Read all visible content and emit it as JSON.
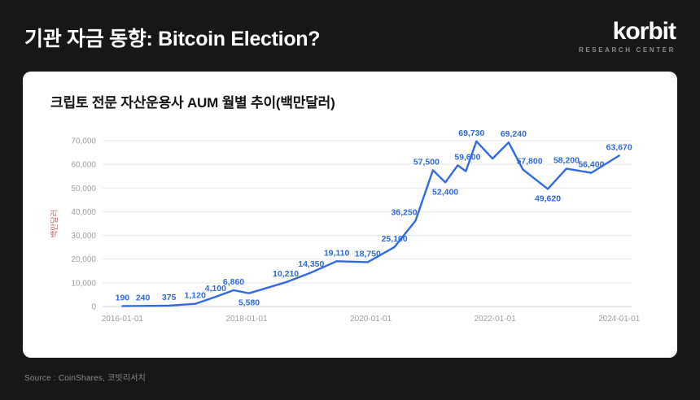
{
  "header": {
    "title": "기관 자금 동향: Bitcoin Election?",
    "logo_text": "korbit",
    "logo_subtitle": "RESEARCH CENTER"
  },
  "card": {
    "title": "크립토 전문 자산운용사 AUM 월별 추이(백만달러)"
  },
  "footer": {
    "source": "Source : CoinShares, 코빗리서치"
  },
  "colors": {
    "background": "#171717",
    "card_background": "#ffffff",
    "line": "#2f6be0",
    "data_label": "#2f6be0",
    "axis_text": "#9aa0a6",
    "grid": "#e8e8e8",
    "ylabel_text": "#b96a6a"
  },
  "chart_data": {
    "type": "line",
    "title": "크립토 전문 자산운용사 AUM 월별 추이(백만달러)",
    "xlabel": "",
    "ylabel": "백만달러",
    "ylim": [
      0,
      70000
    ],
    "x_range": [
      2015.68,
      2024.2
    ],
    "grid": true,
    "legend": false,
    "series_name": "AUM",
    "y_ticks": [
      {
        "value": 0,
        "label": "0"
      },
      {
        "value": 10000,
        "label": "10,000"
      },
      {
        "value": 20000,
        "label": "20,000"
      },
      {
        "value": 30000,
        "label": "30,000"
      },
      {
        "value": 40000,
        "label": "40,000"
      },
      {
        "value": 50000,
        "label": "50,000"
      },
      {
        "value": 60000,
        "label": "60,000"
      },
      {
        "value": 70000,
        "label": "70,000"
      }
    ],
    "x_ticks": [
      {
        "x": 2016,
        "label": "2016-01-01"
      },
      {
        "x": 2018,
        "label": "2018-01-01"
      },
      {
        "x": 2020,
        "label": "2020-01-01"
      },
      {
        "x": 2022,
        "label": "2022-01-01"
      },
      {
        "x": 2024,
        "label": "2024-01-01"
      }
    ],
    "points": [
      {
        "x": 2016.0,
        "value": 190,
        "label": "190",
        "pos": "above"
      },
      {
        "x": 2016.33,
        "value": 240,
        "label": "240",
        "pos": "above"
      },
      {
        "x": 2016.75,
        "value": 375,
        "label": "375",
        "pos": "above"
      },
      {
        "x": 2017.17,
        "value": 1120,
        "label": "1,120",
        "pos": "above"
      },
      {
        "x": 2017.5,
        "value": 4100,
        "label": "4,100",
        "pos": "above"
      },
      {
        "x": 2017.79,
        "value": 6860,
        "label": "6,860",
        "pos": "above"
      },
      {
        "x": 2018.04,
        "value": 5580,
        "label": "5,580",
        "pos": "below"
      },
      {
        "x": 2018.63,
        "value": 10210,
        "label": "10,210",
        "pos": "above"
      },
      {
        "x": 2019.04,
        "value": 14350,
        "label": "14,350",
        "pos": "above"
      },
      {
        "x": 2019.45,
        "value": 19110,
        "label": "19,110",
        "pos": "above"
      },
      {
        "x": 2019.95,
        "value": 18750,
        "label": "18,750",
        "pos": "above"
      },
      {
        "x": 2020.38,
        "value": 25100,
        "label": "25,100",
        "pos": "above"
      },
      {
        "x": 2020.72,
        "value": 36250,
        "label": "36,250",
        "pos": "above",
        "dx": -14
      },
      {
        "x": 2021.0,
        "value": 57500,
        "label": "57,500",
        "pos": "above",
        "dx": -8
      },
      {
        "x": 2021.2,
        "value": 52400,
        "label": "52,400",
        "pos": "below"
      },
      {
        "x": 2021.4,
        "value": 59600,
        "label": "59,600",
        "pos": "above",
        "dx": 12
      },
      {
        "x": 2021.53,
        "value": 57100,
        "label": null
      },
      {
        "x": 2021.7,
        "value": 69730,
        "label": "69,730",
        "pos": "above",
        "dx": -6
      },
      {
        "x": 2021.96,
        "value": 62400,
        "label": null
      },
      {
        "x": 2022.22,
        "value": 69240,
        "label": "69,240",
        "pos": "above",
        "dx": 6
      },
      {
        "x": 2022.45,
        "value": 57800,
        "label": "57,800",
        "pos": "above",
        "dx": 8
      },
      {
        "x": 2022.85,
        "value": 49620,
        "label": "49,620",
        "pos": "below"
      },
      {
        "x": 2023.15,
        "value": 58200,
        "label": "58,200",
        "pos": "above"
      },
      {
        "x": 2023.55,
        "value": 56400,
        "label": "56,400",
        "pos": "above"
      },
      {
        "x": 2024.0,
        "value": 63670,
        "label": "63,670",
        "pos": "above"
      }
    ]
  }
}
